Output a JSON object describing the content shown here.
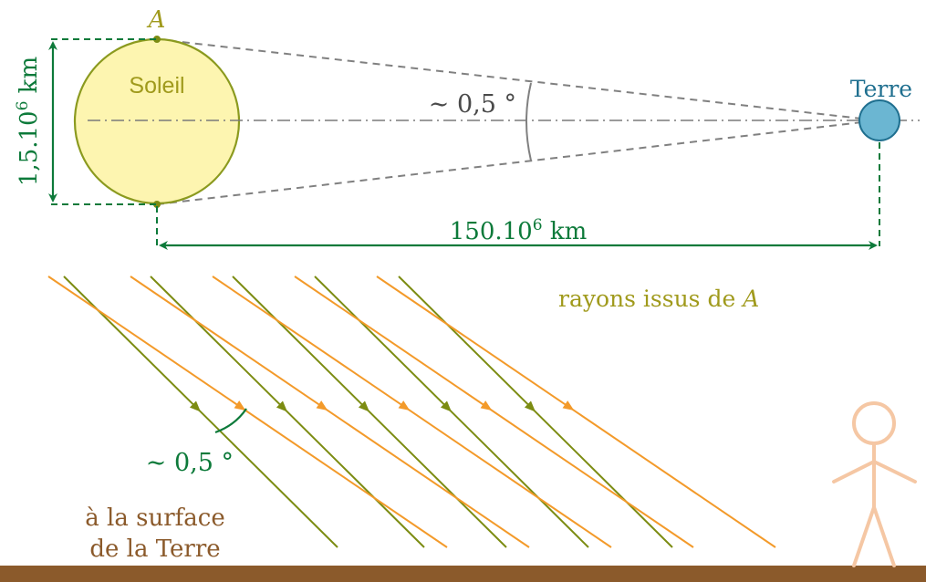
{
  "colors": {
    "sun_fill": "#fdf5b0",
    "sun_stroke": "#8b9a1f",
    "earth_fill": "#6bb6d2",
    "earth_stroke": "#1f6f8f",
    "earth_label": "#1f6f8f",
    "dimension_green": "#0d7a3a",
    "dashed_gray": "#808080",
    "axis_gray": "#7a7a7a",
    "ray_olive": "#7c8c12",
    "ray_orange": "#f39a2a",
    "ground": "#8b5a2b",
    "ground_label": "#8b5a2b",
    "person": "#f5c7a4",
    "label_olive": "#a09a1c"
  },
  "top_diagram": {
    "point_label": "A",
    "sun_label": "Soleil",
    "earth_label": "Terre",
    "sun_diameter_label_base": "1,5.10",
    "sun_diameter_label_exp": "6",
    "sun_diameter_label_unit": " km",
    "distance_label_base": "150.10",
    "distance_label_exp": "6",
    "distance_label_unit": " km",
    "angle_label": "∼ 0,5 °"
  },
  "bottom_diagram": {
    "rays_label_text": "rayons issus de ",
    "rays_label_var": "A",
    "angle_label": "∼ 0,5 °",
    "surface_label_line1": "à la surface",
    "surface_label_line2": "de la Terre"
  }
}
